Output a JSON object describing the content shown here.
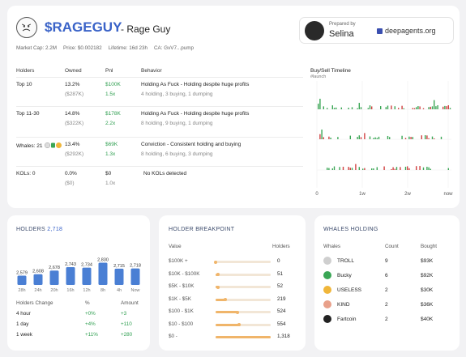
{
  "token": {
    "ticker": "$RAGEGUY",
    "name": "- Rage Guy"
  },
  "meta": {
    "market_cap": "Market Cap: 2.2M",
    "price": "Price: $0.002182",
    "lifetime": "Lifetime: 16d 23h",
    "ca": "CA: GvV7...pump"
  },
  "prepared": {
    "label": "Prepared by",
    "name": "Selina",
    "brand": "deepagents.org"
  },
  "table": {
    "headers": [
      "Holders",
      "Owned",
      "Pnl",
      "Behavior"
    ],
    "rows": [
      {
        "label": "Top 10",
        "owned": "13.2%",
        "owned_usd": "($287K)",
        "pnl": "$100K",
        "pnl_x": "1.5x",
        "behavior": "Holding As Fuck - Holding despite huge profits",
        "detail": "4 holding, 3 buying, 1 dumping"
      },
      {
        "label": "Top 11-30",
        "owned": "14.8%",
        "owned_usd": "($322K)",
        "pnl": "$178K",
        "pnl_x": "2.2x",
        "behavior": "Holding As Fuck - Holding despite huge profits",
        "detail": "8 holding, 9 buying, 1 dumping"
      },
      {
        "label": "Whales: 21",
        "owned": "13.4%",
        "owned_usd": "($292K)",
        "pnl": "$69K",
        "pnl_x": "1.3x",
        "behavior": "Conviction - Consistent holding and buying",
        "detail": "8 holding, 6 buying, 3 dumping"
      },
      {
        "label": "KOLs: 0",
        "owned": "0.0%",
        "owned_usd": "($0)",
        "pnl": "$0",
        "pnl_x": "1.0x",
        "behavior": "No KOLs detected",
        "detail": ""
      }
    ]
  },
  "timeline": {
    "title": "Buy/Sell Timeline",
    "subtitle": "#launch",
    "ticks": [
      "0",
      "1w",
      "2w",
      "now"
    ],
    "buy_color": "#3aa655",
    "sell_color": "#d04040"
  },
  "holders": {
    "title": "HOLDERS",
    "count": "2,718",
    "chart_data": {
      "type": "bar",
      "categories": [
        "28h",
        "24h",
        "20h",
        "16h",
        "12h",
        "8h",
        "4h",
        "Now"
      ],
      "values": [
        2579,
        2608,
        2678,
        2743,
        2734,
        2830,
        2715,
        2718
      ],
      "value_labels": [
        "2,579",
        "2,608",
        "2,678",
        "2,743",
        "2,734",
        "2,830",
        "2,715",
        "2,718"
      ],
      "color": "#4a7fd4"
    },
    "change_headers": [
      "Holders Change",
      "%",
      "Amount"
    ],
    "changes": [
      {
        "period": "4 hour",
        "pct": "+0%",
        "amount": "+3"
      },
      {
        "period": "1 day",
        "pct": "+4%",
        "amount": "+110"
      },
      {
        "period": "1 week",
        "pct": "+11%",
        "amount": "+280"
      }
    ]
  },
  "breakpoint": {
    "title": "HOLDER BREAKPOINT",
    "headers": [
      "Value",
      "Holders"
    ],
    "rows": [
      {
        "range": "$100K +",
        "holders": "0",
        "fill": 0.0
      },
      {
        "range": "$10K - $100K",
        "holders": "51",
        "fill": 0.04
      },
      {
        "range": "$5K - $10K",
        "holders": "52",
        "fill": 0.04
      },
      {
        "range": "$1K - $5K",
        "holders": "219",
        "fill": 0.17
      },
      {
        "range": "$100 - $1K",
        "holders": "524",
        "fill": 0.4
      },
      {
        "range": "$10 - $100",
        "holders": "554",
        "fill": 0.42
      },
      {
        "range": "$0 -",
        "holders": "1,318",
        "fill": 1.0
      }
    ]
  },
  "whales": {
    "title": "WHALES HOLDING",
    "headers": [
      "Whales",
      "Count",
      "Bought"
    ],
    "rows": [
      {
        "name": "TROLL",
        "count": "9",
        "bought": "$93K",
        "icon": "troll-icon",
        "color": "#cfcfcf"
      },
      {
        "name": "Bucky",
        "count": "6",
        "bought": "$92K",
        "icon": "bucky-icon",
        "color": "#3aa655"
      },
      {
        "name": "USELESS",
        "count": "2",
        "bought": "$30K",
        "icon": "useless-coin-icon",
        "color": "#f0b63a"
      },
      {
        "name": "KIND",
        "count": "2",
        "bought": "$36K",
        "icon": "kind-heart-icon",
        "color": "#e8a08a"
      },
      {
        "name": "Fartcoin",
        "count": "2",
        "bought": "$40K",
        "icon": "fartcoin-icon",
        "color": "#222222"
      }
    ]
  }
}
